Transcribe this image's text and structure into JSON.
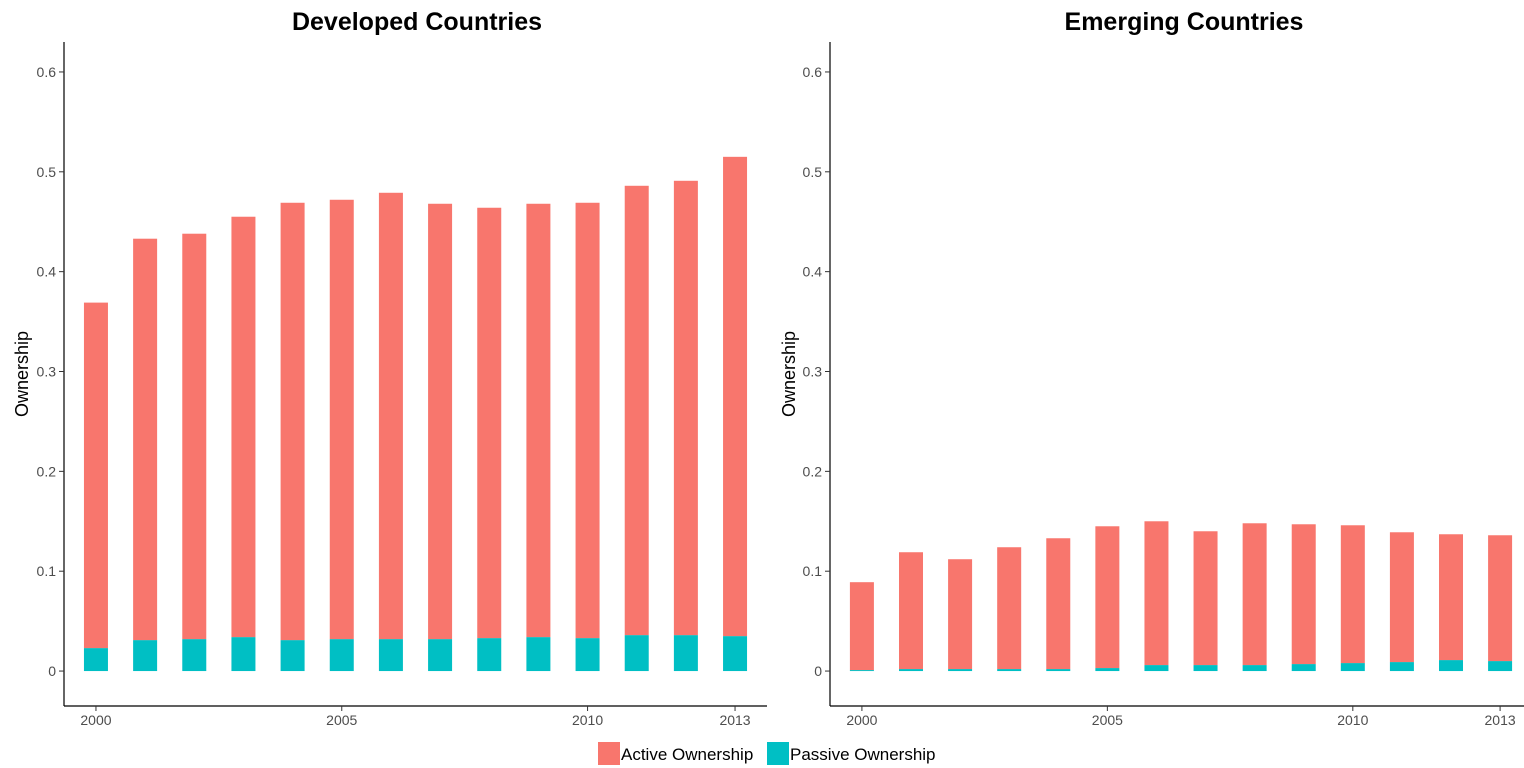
{
  "chart_data": [
    {
      "type": "bar",
      "stacked": true,
      "title": "Developed Countries",
      "xlabel": "",
      "ylabel": "Ownership",
      "ylim": [
        -0.035,
        0.63
      ],
      "yticks": [
        0,
        0.1,
        0.2,
        0.3,
        0.4,
        0.5,
        0.6
      ],
      "ytick_labels": [
        "0",
        "0.1",
        "0.2",
        "0.3",
        "0.4",
        "0.5",
        "0.6"
      ],
      "xlim": [
        1999.35,
        2013.65
      ],
      "xticks": [
        2000,
        2005,
        2010,
        2013
      ],
      "xtick_labels": [
        "2000",
        "2005",
        "2010",
        "2013"
      ],
      "grid": false,
      "x": [
        2000,
        2001,
        2002,
        2003,
        2004,
        2005,
        2006,
        2007,
        2008,
        2009,
        2010,
        2011,
        2012,
        2013
      ],
      "series": [
        {
          "name": "Passive Ownership",
          "color": "#00BFC4",
          "values": [
            0.023,
            0.031,
            0.032,
            0.034,
            0.031,
            0.032,
            0.032,
            0.032,
            0.033,
            0.034,
            0.033,
            0.036,
            0.036,
            0.035
          ]
        },
        {
          "name": "Active Ownership",
          "color": "#F8766D",
          "values": [
            0.346,
            0.402,
            0.406,
            0.421,
            0.438,
            0.44,
            0.447,
            0.436,
            0.431,
            0.434,
            0.436,
            0.45,
            0.455,
            0.48
          ]
        }
      ]
    },
    {
      "type": "bar",
      "stacked": true,
      "title": "Emerging Countries",
      "xlabel": "",
      "ylabel": "Ownership",
      "ylim": [
        -0.035,
        0.63
      ],
      "yticks": [
        0,
        0.1,
        0.2,
        0.3,
        0.4,
        0.5,
        0.6
      ],
      "ytick_labels": [
        "0",
        "0.1",
        "0.2",
        "0.3",
        "0.4",
        "0.5",
        "0.6"
      ],
      "xlim": [
        1999.35,
        2013.65
      ],
      "xticks": [
        2000,
        2005,
        2010,
        2013
      ],
      "xtick_labels": [
        "2000",
        "2005",
        "2010",
        "2013"
      ],
      "grid": false,
      "x": [
        2000,
        2001,
        2002,
        2003,
        2004,
        2005,
        2006,
        2007,
        2008,
        2009,
        2010,
        2011,
        2012,
        2013
      ],
      "series": [
        {
          "name": "Passive Ownership",
          "color": "#00BFC4",
          "values": [
            0.001,
            0.002,
            0.002,
            0.002,
            0.002,
            0.003,
            0.006,
            0.006,
            0.006,
            0.007,
            0.008,
            0.009,
            0.011,
            0.01
          ]
        },
        {
          "name": "Active Ownership",
          "color": "#F8766D",
          "values": [
            0.088,
            0.117,
            0.11,
            0.122,
            0.131,
            0.142,
            0.144,
            0.134,
            0.142,
            0.14,
            0.138,
            0.13,
            0.126,
            0.126
          ]
        }
      ]
    }
  ],
  "legend": {
    "position": "bottom",
    "items": [
      {
        "label": "Active Ownership",
        "color": "#F8766D"
      },
      {
        "label": "Passive Ownership",
        "color": "#00BFC4"
      }
    ]
  }
}
